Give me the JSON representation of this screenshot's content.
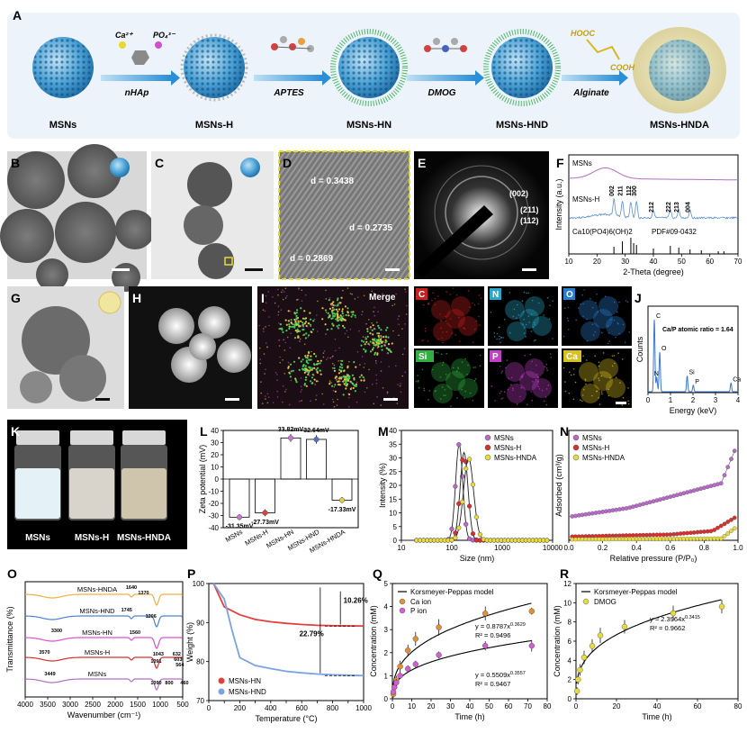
{
  "panels": {
    "A": {
      "label": "A",
      "items": [
        "MSNs",
        "MSNs-H",
        "MSNs-HN",
        "MSNs-HND",
        "MSNs-HNDA"
      ],
      "arrows": [
        "nHAp",
        "APTES",
        "DMOG",
        "Alginate"
      ],
      "reagents": {
        "ca": "Ca²⁺",
        "po4": "PO₄³⁻",
        "hooc": "HOOC",
        "cooh": "COOH"
      }
    },
    "B": {
      "label": "B"
    },
    "C": {
      "label": "C"
    },
    "D": {
      "label": "D",
      "d1": "d = 0.3438",
      "d2": "d = 0.2735",
      "d3": "d = 0.2869"
    },
    "E": {
      "label": "E",
      "rings": [
        "(002)",
        "(211)",
        "(112)"
      ]
    },
    "F": {
      "label": "F"
    },
    "G": {
      "label": "G"
    },
    "H": {
      "label": "H"
    },
    "I": {
      "label": "I",
      "merge": "Merge",
      "maps": [
        "C",
        "N",
        "O",
        "Si",
        "P",
        "Ca"
      ],
      "map_colors": [
        "#c8201f",
        "#2aa8c8",
        "#2a7fd0",
        "#2fb040",
        "#c040c8",
        "#d8c020"
      ]
    },
    "J": {
      "label": "J"
    },
    "K": {
      "label": "K",
      "vials": [
        "MSNs",
        "MSNs-H",
        "MSNs-HNDA"
      ]
    },
    "L": {
      "label": "L"
    },
    "M": {
      "label": "M"
    },
    "N": {
      "label": "N"
    },
    "O": {
      "label": "O"
    },
    "P": {
      "label": "P"
    },
    "Q": {
      "label": "Q"
    },
    "R": {
      "label": "R"
    }
  },
  "chart_data": [
    {
      "panel": "F",
      "type": "line",
      "xlabel": "2-Theta (degree)",
      "ylabel": "Intensity (a.u.)",
      "xlim": [
        10,
        70
      ],
      "xticks": [
        10,
        20,
        30,
        40,
        50,
        60,
        70
      ],
      "series": [
        {
          "name": "MSNs"
        },
        {
          "name": "MSNs-H"
        },
        {
          "name": "Ca10(PO4)6(OH)2"
        }
      ],
      "reference_card": "PDF#09-0432",
      "peaks": [
        {
          "x": 26,
          "label": "002"
        },
        {
          "x": 29,
          "label": "211"
        },
        {
          "x": 32,
          "label": "112"
        },
        {
          "x": 34,
          "label": "300"
        },
        {
          "x": 40,
          "label": "212"
        },
        {
          "x": 46,
          "label": "222"
        },
        {
          "x": 49,
          "label": "213"
        },
        {
          "x": 53,
          "label": "004"
        }
      ]
    },
    {
      "panel": "J",
      "type": "line",
      "xlabel": "Energy (keV)",
      "ylabel": "Counts",
      "xlim": [
        0,
        4
      ],
      "xticks": [
        0,
        1,
        2,
        3,
        4
      ],
      "annotation": "Ca/P atomic ratio = 1.64",
      "peaks": [
        {
          "x": 0.28,
          "label": "C",
          "h": 1.0
        },
        {
          "x": 0.39,
          "label": "N",
          "h": 0.2
        },
        {
          "x": 0.52,
          "label": "O",
          "h": 0.55
        },
        {
          "x": 1.74,
          "label": "Si",
          "h": 0.22
        },
        {
          "x": 2.01,
          "label": "P",
          "h": 0.09
        },
        {
          "x": 3.69,
          "label": "Ca",
          "h": 0.12
        }
      ]
    },
    {
      "panel": "L",
      "type": "bar",
      "ylabel": "Zeta potential (mV)",
      "ylim": [
        -40,
        40
      ],
      "yticks": [
        -40,
        -30,
        -20,
        -10,
        0,
        10,
        20,
        30,
        40
      ],
      "categories": [
        "MSNs",
        "MSNs-H",
        "MSNs-HN",
        "MSNs-HND",
        "MSNs-HNDA"
      ],
      "values": [
        -31.35,
        -27.73,
        33.82,
        32.64,
        -17.33
      ],
      "errors": [
        2.5,
        2.8,
        3.2,
        3.5,
        2.5
      ],
      "value_labels": [
        "-31.35mV",
        "-27.73mV",
        "33.82mV",
        "32.64mV",
        "-17.33mV"
      ],
      "colors": [
        "#c878d0",
        "#e04040",
        "#c878d0",
        "#5070d0",
        "#e0d040"
      ]
    },
    {
      "panel": "M",
      "type": "line",
      "xlabel": "Size (nm)",
      "ylabel": "Intensity (%)",
      "xscale": "log",
      "xlim": [
        10,
        10000
      ],
      "ylim": [
        0,
        40
      ],
      "yticks": [
        0,
        5,
        10,
        15,
        20,
        25,
        30,
        35,
        40
      ],
      "xticks": [
        10,
        100,
        1000,
        10000
      ],
      "series": [
        {
          "name": "MSNs",
          "color": "#b86ac8",
          "peak": 140,
          "height": 35,
          "width": 0.1
        },
        {
          "name": "MSNs-H",
          "color": "#d83030",
          "peak": 175,
          "height": 32,
          "width": 0.11
        },
        {
          "name": "MSNs-HNDA",
          "color": "#e6dc40",
          "peak": 215,
          "height": 30,
          "width": 0.14
        }
      ]
    },
    {
      "panel": "N",
      "type": "line",
      "xlabel": "Relative pressure (P/P₀)",
      "ylabel": "Adsorbed (cm³/g)",
      "xlim": [
        0,
        1
      ],
      "xticks": [
        0.0,
        0.2,
        0.4,
        0.6,
        0.8,
        1.0
      ],
      "series": [
        {
          "name": "MSNs",
          "color": "#b86ac8"
        },
        {
          "name": "MSNs-H",
          "color": "#d83030"
        },
        {
          "name": "MSNs-HNDA",
          "color": "#e6dc40"
        }
      ]
    },
    {
      "panel": "O",
      "type": "line",
      "xlabel": "Wavenumber (cm⁻¹)",
      "ylabel": "Transmittance (%)",
      "xlim": [
        4000,
        500
      ],
      "xticks": [
        4000,
        3500,
        3000,
        2500,
        2000,
        1500,
        1000,
        500
      ],
      "series": [
        {
          "name": "MSNs-HNDA",
          "color": "#f0b040"
        },
        {
          "name": "MSNs-HND",
          "color": "#5080d0"
        },
        {
          "name": "MSNs-HN",
          "color": "#e050d0"
        },
        {
          "name": "MSNs-H",
          "color": "#d83030"
        },
        {
          "name": "MSNs",
          "color": "#b070c0"
        }
      ],
      "annotations": [
        "1640",
        "1370",
        "1745",
        "1206",
        "3300",
        "1560",
        "3570",
        "1043",
        "632",
        "603",
        "564",
        "1091",
        "3449",
        "1090",
        "800",
        "460"
      ]
    },
    {
      "panel": "P",
      "type": "line",
      "xlabel": "Temperature (°C)",
      "ylabel": "Weight (%)",
      "xlim": [
        0,
        1000
      ],
      "ylim": [
        70,
        100
      ],
      "xticks": [
        0,
        100,
        200,
        300,
        400,
        500,
        600,
        700,
        800,
        900,
        1000
      ],
      "yticks": [
        70,
        80,
        90,
        100
      ],
      "series": [
        {
          "name": "MSNs-HN",
          "color": "#e04040",
          "x": [
            30,
            100,
            200,
            300,
            400,
            500,
            600,
            700,
            800,
            900,
            1000
          ],
          "y": [
            100,
            94,
            92,
            90.8,
            90.2,
            89.8,
            89.5,
            89.3,
            89.2,
            89.15,
            89.1
          ]
        },
        {
          "name": "MSNs-HND",
          "color": "#7aa2e6",
          "x": [
            30,
            100,
            150,
            200,
            300,
            400,
            500,
            600,
            700,
            800,
            900,
            1000
          ],
          "y": [
            100,
            96,
            88,
            81,
            79,
            78.2,
            77.5,
            77.1,
            76.8,
            76.6,
            76.5,
            76.4
          ]
        }
      ],
      "annotations": [
        "10.26%",
        "22.79%"
      ]
    },
    {
      "panel": "Q",
      "type": "scatter",
      "xlabel": "Time (h)",
      "ylabel": "Concentration (mM)",
      "xlim": [
        0,
        80
      ],
      "ylim": [
        0,
        5
      ],
      "xticks": [
        0,
        10,
        20,
        30,
        40,
        50,
        60,
        70,
        80
      ],
      "yticks": [
        0,
        1,
        2,
        3,
        4,
        5
      ],
      "legend": [
        "Korsmeyer-Peppas model",
        "Ca ion",
        "P ion"
      ],
      "series": [
        {
          "name": "Ca ion",
          "color": "#e0903a",
          "x": [
            0.5,
            1,
            2,
            4,
            8,
            12,
            24,
            48,
            72
          ],
          "y": [
            0.2,
            0.5,
            0.8,
            1.4,
            2.1,
            2.6,
            3.1,
            3.7,
            3.8
          ],
          "err": [
            0.15,
            0.15,
            0.2,
            0.25,
            0.25,
            0.3,
            0.35,
            0.3,
            0.15
          ]
        },
        {
          "name": "P ion",
          "color": "#d060d0",
          "x": [
            0.5,
            1,
            2,
            4,
            8,
            12,
            24,
            48,
            72
          ],
          "y": [
            0.3,
            0.5,
            0.7,
            1.0,
            1.3,
            1.5,
            1.9,
            2.3,
            2.3
          ],
          "err": [
            0.1,
            0.12,
            0.15,
            0.15,
            0.15,
            0.15,
            0.15,
            0.2,
            0.25
          ]
        }
      ],
      "fits": [
        {
          "name": "Ca",
          "a": 0.8787,
          "b": 0.3629,
          "eq": "y = 0.8787x",
          "exp": "0.3629",
          "r2": "R² = 0.9496"
        },
        {
          "name": "P",
          "a": 0.5509,
          "b": 0.3557,
          "eq": "y = 0.5509x",
          "exp": "0.3557",
          "r2": "R² = 0.9467"
        }
      ]
    },
    {
      "panel": "R",
      "type": "scatter",
      "xlabel": "Time (h)",
      "ylabel": "Concentration (mM)",
      "xlim": [
        0,
        80
      ],
      "ylim": [
        0,
        12
      ],
      "xticks": [
        0,
        20,
        40,
        60,
        80
      ],
      "yticks": [
        0,
        2,
        4,
        6,
        8,
        10,
        12
      ],
      "legend": [
        "Korsmeyer-Peppas model",
        "DMOG"
      ],
      "series": [
        {
          "name": "DMOG",
          "color": "#e6dc40",
          "x": [
            0.5,
            1,
            2,
            4,
            8,
            12,
            24,
            48,
            72
          ],
          "y": [
            0.8,
            2.0,
            3.0,
            4.3,
            5.5,
            6.6,
            7.5,
            8.9,
            9.6
          ],
          "err": [
            0.4,
            0.5,
            0.6,
            0.7,
            0.7,
            0.8,
            0.7,
            0.8,
            0.7
          ]
        }
      ],
      "fits": [
        {
          "name": "DMOG",
          "a": 2.3964,
          "b": 0.3415,
          "eq": "y = 2.3964x",
          "exp": "0.3415",
          "r2": "R² = 0.9662"
        }
      ]
    }
  ]
}
